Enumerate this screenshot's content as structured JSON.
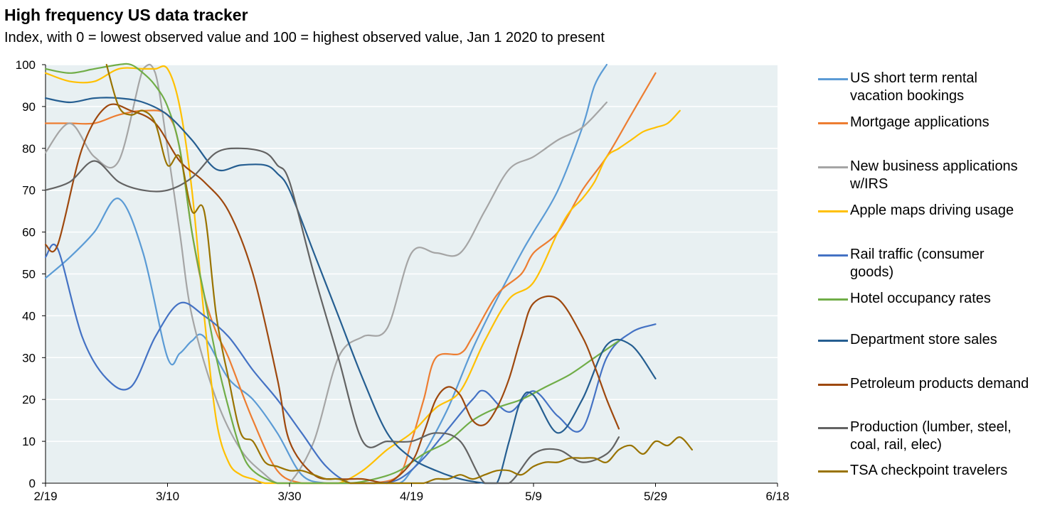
{
  "chart_data": {
    "type": "line",
    "title": "High frequency US data tracker",
    "subtitle": "Index, with 0 = lowest observed value and 100 = highest observed value, Jan 1 2020 to present",
    "x_tick_labels": [
      "2/19",
      "3/10",
      "3/30",
      "4/19",
      "5/9",
      "5/29",
      "6/18"
    ],
    "x_tick_days": [
      0,
      20,
      40,
      60,
      80,
      100,
      120
    ],
    "x_start_label": "2/19",
    "y_ticks": [
      0,
      10,
      20,
      30,
      40,
      50,
      60,
      70,
      80,
      90,
      100
    ],
    "ylim": [
      0,
      100
    ],
    "grid": true,
    "legend_position": "right",
    "plot_background": "#e8f0f2",
    "series": [
      {
        "name": "US short term rental vacation bookings",
        "color": "#5b9bd5",
        "x": [
          0,
          4,
          8,
          12,
          16,
          20,
          22,
          24,
          26,
          30,
          34,
          38,
          42,
          46,
          50,
          54,
          58,
          60,
          62,
          66,
          70,
          74,
          78,
          80,
          84,
          88,
          90,
          92
        ],
        "y": [
          49,
          54,
          60,
          68,
          55,
          30,
          31,
          34,
          35,
          25,
          20,
          12,
          2,
          0,
          0,
          0,
          0,
          3,
          7,
          18,
          32,
          44,
          55,
          60,
          70,
          85,
          95,
          100
        ]
      },
      {
        "name": "Mortgage applications",
        "color": "#ed7d31",
        "x": [
          0,
          4,
          8,
          12,
          16,
          20,
          22,
          24,
          26,
          28,
          30,
          34,
          38,
          42,
          46,
          50,
          54,
          58,
          60,
          62,
          64,
          68,
          70,
          74,
          78,
          80,
          84,
          88,
          92,
          96,
          100
        ],
        "y": [
          86,
          86,
          86,
          88,
          89,
          88,
          80,
          60,
          45,
          36,
          30,
          15,
          3,
          0,
          0,
          0,
          0,
          2,
          10,
          20,
          30,
          31,
          35,
          45,
          50,
          55,
          60,
          70,
          78,
          88,
          98
        ]
      },
      {
        "name": "New business applications w/IRS",
        "color": "#a5a5a5",
        "x": [
          0,
          4,
          8,
          12,
          16,
          18,
          20,
          22,
          24,
          28,
          32,
          36,
          38,
          40,
          44,
          48,
          52,
          56,
          60,
          64,
          68,
          72,
          76,
          80,
          84,
          88,
          92
        ],
        "y": [
          79,
          86,
          78,
          77,
          99,
          98,
          80,
          60,
          40,
          20,
          8,
          2,
          0,
          0,
          10,
          30,
          35,
          37,
          55,
          55,
          55,
          65,
          75,
          78,
          82,
          85,
          91
        ]
      },
      {
        "name": "Apple maps driving usage",
        "color": "#ffc000",
        "x": [
          0,
          4,
          8,
          12,
          16,
          18,
          20,
          22,
          24,
          26,
          28,
          30,
          32,
          34,
          36,
          40,
          44,
          48,
          52,
          56,
          60,
          64,
          68,
          72,
          76,
          80,
          84,
          86,
          88,
          90,
          92,
          94,
          96,
          98,
          100,
          102,
          104
        ],
        "y": [
          98,
          96,
          96,
          99,
          99,
          99,
          99,
          90,
          70,
          40,
          15,
          5,
          2,
          1,
          0,
          0,
          0,
          0,
          3,
          8,
          12,
          18,
          22,
          34,
          44,
          48,
          60,
          65,
          68,
          72,
          78,
          80,
          82,
          84,
          85,
          86,
          89
        ]
      },
      {
        "name": "Rail traffic (consumer goods)",
        "color": "#4472c4",
        "x": [
          0,
          2,
          6,
          10,
          14,
          18,
          22,
          26,
          30,
          34,
          38,
          42,
          46,
          50,
          54,
          58,
          62,
          66,
          70,
          72,
          76,
          80,
          84,
          88,
          92,
          96,
          100
        ],
        "y": [
          54,
          56,
          35,
          25,
          23,
          35,
          43,
          40,
          35,
          27,
          20,
          12,
          4,
          0,
          0,
          1,
          6,
          13,
          20,
          22,
          17,
          22,
          16,
          13,
          30,
          36,
          38
        ]
      },
      {
        "name": "Hotel occupancy rates",
        "color": "#70ad47",
        "x": [
          0,
          4,
          8,
          12,
          14,
          16,
          18,
          20,
          22,
          24,
          26,
          28,
          30,
          32,
          34,
          38,
          42,
          46,
          50,
          54,
          58,
          62,
          66,
          70,
          74,
          78,
          82,
          86,
          90,
          94
        ],
        "y": [
          99,
          98,
          99,
          100,
          100,
          98,
          95,
          90,
          80,
          60,
          45,
          30,
          18,
          8,
          3,
          0,
          0,
          0,
          0,
          1,
          3,
          7,
          10,
          15,
          18,
          20,
          23,
          26,
          30,
          34
        ]
      },
      {
        "name": "Department store sales",
        "color": "#255e91",
        "x": [
          0,
          4,
          8,
          12,
          16,
          20,
          24,
          28,
          32,
          36,
          38,
          40,
          44,
          48,
          52,
          56,
          60,
          64,
          68,
          72,
          74,
          76,
          78,
          80,
          84,
          88,
          92,
          96,
          100
        ],
        "y": [
          92,
          91,
          92,
          92,
          91,
          88,
          82,
          75,
          76,
          76,
          74,
          70,
          55,
          40,
          25,
          12,
          6,
          3,
          1,
          0,
          0,
          10,
          20,
          21,
          12,
          20,
          33,
          33,
          25
        ]
      },
      {
        "name": "Petroleum products demand",
        "color": "#9e480e",
        "x": [
          0,
          2,
          6,
          10,
          14,
          18,
          22,
          26,
          30,
          34,
          38,
          40,
          44,
          48,
          52,
          56,
          60,
          62,
          64,
          66,
          68,
          70,
          72,
          74,
          76,
          78,
          80,
          84,
          88,
          90,
          92,
          94
        ],
        "y": [
          57,
          57,
          80,
          90,
          89,
          86,
          77,
          72,
          65,
          50,
          25,
          10,
          2,
          1,
          1,
          0,
          5,
          12,
          20,
          23,
          21,
          15,
          14,
          18,
          25,
          35,
          43,
          44,
          35,
          28,
          20,
          13
        ]
      },
      {
        "name": "Production (lumber, steel, coal, rail, elec)",
        "color": "#636363",
        "x": [
          0,
          4,
          8,
          12,
          16,
          20,
          24,
          28,
          32,
          36,
          38,
          40,
          44,
          48,
          52,
          56,
          60,
          64,
          68,
          72,
          76,
          80,
          84,
          88,
          92,
          94
        ],
        "y": [
          70,
          72,
          77,
          72,
          70,
          70,
          73,
          79,
          80,
          79,
          76,
          72,
          50,
          30,
          10,
          10,
          10,
          12,
          10,
          0,
          0,
          7,
          8,
          5,
          7,
          11
        ]
      },
      {
        "name": "TSA checkpoint travelers",
        "color": "#997300",
        "x": [
          10,
          12,
          14,
          16,
          18,
          20,
          22,
          24,
          26,
          28,
          30,
          32,
          34,
          36,
          38,
          40,
          42,
          44,
          46,
          48,
          50,
          52,
          54,
          56,
          58,
          60,
          62,
          64,
          66,
          68,
          70,
          72,
          74,
          76,
          78,
          80,
          82,
          84,
          86,
          88,
          90,
          92,
          94,
          96,
          98,
          100,
          102,
          104,
          106
        ],
        "y": [
          100,
          90,
          88,
          89,
          86,
          76,
          78,
          65,
          65,
          40,
          25,
          12,
          10,
          5,
          4,
          3,
          3,
          2,
          1,
          1,
          0,
          0,
          0,
          0,
          0,
          0,
          0,
          1,
          1,
          2,
          1,
          2,
          3,
          3,
          2,
          4,
          5,
          5,
          6,
          6,
          6,
          5,
          8,
          9,
          7,
          10,
          9,
          11,
          8
        ]
      }
    ]
  }
}
